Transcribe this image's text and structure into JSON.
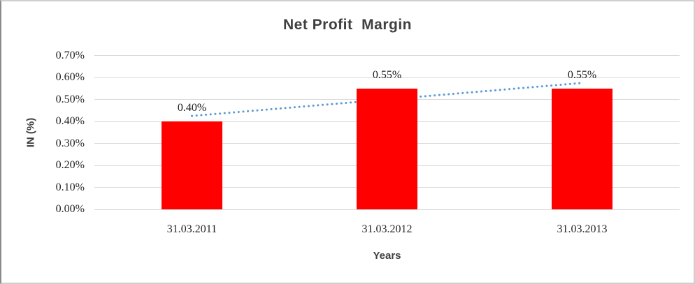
{
  "chart_data": {
    "type": "bar",
    "title": "Net Profit  Margin",
    "title_color": "#3f3f3f",
    "categories": [
      "31.03.2011",
      "31.03.2012",
      "31.03.2013"
    ],
    "values": [
      0.4,
      0.55,
      0.55
    ],
    "data_labels": [
      "0.40%",
      "0.55%",
      "0.55%"
    ],
    "xlabel": "Years",
    "ylabel": "IN (%)",
    "ylim": [
      0,
      0.7
    ],
    "y_unit": "percent",
    "y_tick_values": [
      0,
      0.1,
      0.2,
      0.3,
      0.4,
      0.5,
      0.6,
      0.7
    ],
    "y_tick_labels": [
      "0.00%",
      "0.10%",
      "0.20%",
      "0.30%",
      "0.40%",
      "0.50%",
      "0.60%",
      "0.70%"
    ],
    "bar_color": "#ff0000",
    "grid": true,
    "grid_color": "#d9d9d9",
    "legend": "none",
    "trendline": {
      "type": "linear",
      "style": "dotted",
      "color": "#5b9bd5",
      "endpoints_values": [
        0.425,
        0.575
      ]
    }
  }
}
